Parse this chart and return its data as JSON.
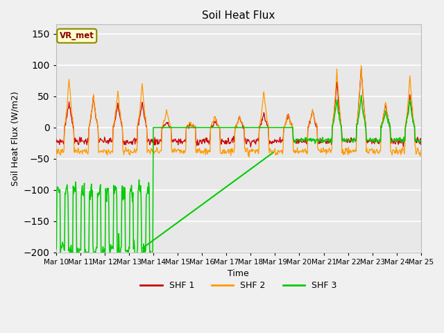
{
  "title": "Soil Heat Flux",
  "xlabel": "Time",
  "ylabel": "Soil Heat Flux (W/m2)",
  "ylim": [
    -200,
    165
  ],
  "xlim": [
    0,
    360
  ],
  "legend": [
    "SHF 1",
    "SHF 2",
    "SHF 3"
  ],
  "legend_colors": [
    "#cc0000",
    "#ff9900",
    "#00cc00"
  ],
  "annotation_text": "VR_met",
  "fig_bg": "#f0f0f0",
  "ax_bg": "#e8e8e8",
  "xtick_labels": [
    "Mar 10",
    "Mar 11",
    "Mar 12",
    "Mar 13",
    "Mar 14",
    "Mar 15",
    "Mar 16",
    "Mar 17",
    "Mar 18",
    "Mar 19",
    "Mar 20",
    "Mar 21",
    "Mar 22",
    "Mar 23",
    "Mar 24",
    "Mar 25"
  ],
  "xtick_positions": [
    0,
    24,
    48,
    72,
    96,
    120,
    144,
    168,
    192,
    216,
    240,
    264,
    288,
    312,
    336,
    360
  ],
  "ytick_positions": [
    -200,
    -150,
    -100,
    -50,
    0,
    50,
    100,
    150
  ],
  "connector_x0": 84,
  "connector_y0": -195,
  "connector_x1": 216,
  "connector_y1": -38
}
